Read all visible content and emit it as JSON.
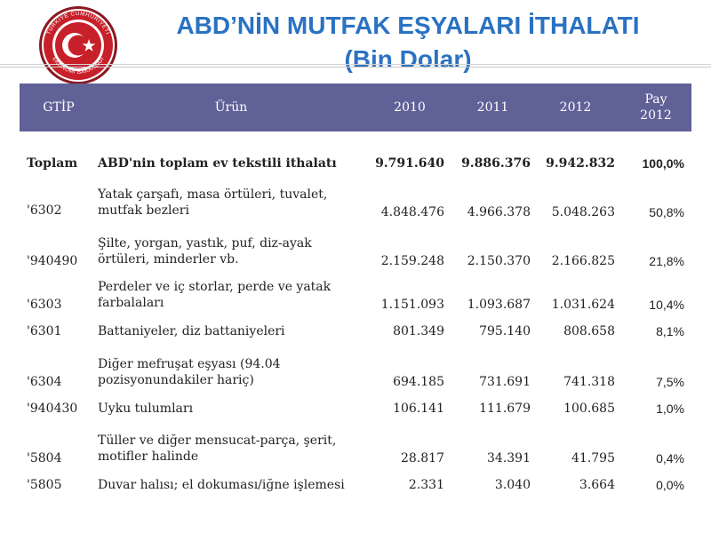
{
  "title_line1": "ABD’NİN MUTFAK EŞYALARI İTHALATI",
  "title_line2": "(Bin Dolar)",
  "logo_text": "TÜRKİYE CUMHURİYETİ EKONOMİ BAKANLIĞI",
  "header": {
    "gtip": "GTİP",
    "urun": "Ürün",
    "y2010": "2010",
    "y2011": "2011",
    "y2012": "2012",
    "pay_line1": "Pay",
    "pay_line2": "2012"
  },
  "rows": [
    {
      "code": "Toplam",
      "product": "ABD'nin toplam ev tekstili ithalatı",
      "v2010": "9.791.640",
      "v2011": "9.886.376",
      "v2012": "9.942.832",
      "pay": "100,0%"
    },
    {
      "code": "'6302",
      "product": "Yatak çarşafı, masa örtüleri, tuvalet, mutfak bezleri",
      "v2010": "4.848.476",
      "v2011": "4.966.378",
      "v2012": "5.048.263",
      "pay": "50,8%"
    },
    {
      "code": "'940490",
      "product": "Şilte, yorgan, yastık, puf, diz-ayak örtüleri, minderler vb.",
      "v2010": "2.159.248",
      "v2011": "2.150.370",
      "v2012": "2.166.825",
      "pay": "21,8%"
    },
    {
      "code": "'6303",
      "product": "Perdeler ve iç storlar, perde ve yatak farbalaları",
      "v2010": "1.151.093",
      "v2011": "1.093.687",
      "v2012": "1.031.624",
      "pay": "10,4%"
    },
    {
      "code": "'6301",
      "product": "Battaniyeler, diz battaniyeleri",
      "v2010": "801.349",
      "v2011": "795.140",
      "v2012": "808.658",
      "pay": "8,1%"
    },
    {
      "code": "'6304",
      "product": "Diğer mefruşat eşyası (94.04 pozisyonundakiler hariç)",
      "v2010": "694.185",
      "v2011": "731.691",
      "v2012": "741.318",
      "pay": "7,5%"
    },
    {
      "code": "'940430",
      "product": "Uyku tulumları",
      "v2010": "106.141",
      "v2011": "111.679",
      "v2012": "100.685",
      "pay": "1,0%"
    },
    {
      "code": "'5804",
      "product": "Tüller ve diğer mensucat-parça, şerit, motifler halinde",
      "v2010": "28.817",
      "v2011": "34.391",
      "v2012": "41.795",
      "pay": "0,4%"
    },
    {
      "code": "'5805",
      "product": "Duvar halısı; el dokuması/iğne işlemesi",
      "v2010": "2.331",
      "v2011": "3.040",
      "v2012": "3.664",
      "pay": "0,0%"
    }
  ],
  "colors": {
    "title": "#2a72c2",
    "header_bg": "#5f6197",
    "logo_red": "#c8202a",
    "logo_outer": "#8a1820"
  }
}
